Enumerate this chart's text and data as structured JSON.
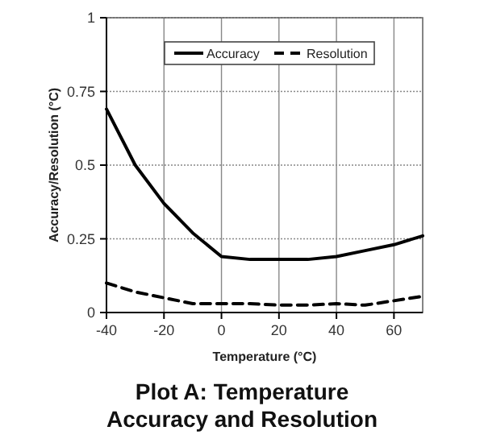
{
  "chart_data": {
    "type": "line",
    "title": "Plot A: Temperature\nAccuracy and Resolution",
    "xlabel": "Temperature (°C)",
    "ylabel": "Accuracy/Resolution  (°C)",
    "x": [
      -40,
      -30,
      -20,
      -10,
      0,
      10,
      20,
      30,
      40,
      50,
      60,
      70
    ],
    "series": [
      {
        "name": "Accuracy",
        "color": "#000000",
        "line_style": "solid",
        "values": [
          0.69,
          0.5,
          0.37,
          0.27,
          0.19,
          0.18,
          0.18,
          0.18,
          0.19,
          0.21,
          0.23,
          0.26
        ]
      },
      {
        "name": "Resolution",
        "color": "#000000",
        "line_style": "dashed",
        "values": [
          0.1,
          0.07,
          0.05,
          0.03,
          0.03,
          0.03,
          0.025,
          0.025,
          0.03,
          0.025,
          0.04,
          0.055
        ]
      }
    ],
    "xlim": [
      -40,
      70
    ],
    "xticks": [
      -40,
      -20,
      0,
      20,
      40,
      60
    ],
    "ylim": [
      0,
      1
    ],
    "yticks": [
      0,
      {
        "value": 0.25,
        "label": "0.25"
      },
      {
        "value": 0.5,
        "label": "0.5"
      },
      {
        "value": 0.75,
        "label": "0.75"
      },
      1
    ],
    "grid": true,
    "legend": "top",
    "marker": "none"
  }
}
